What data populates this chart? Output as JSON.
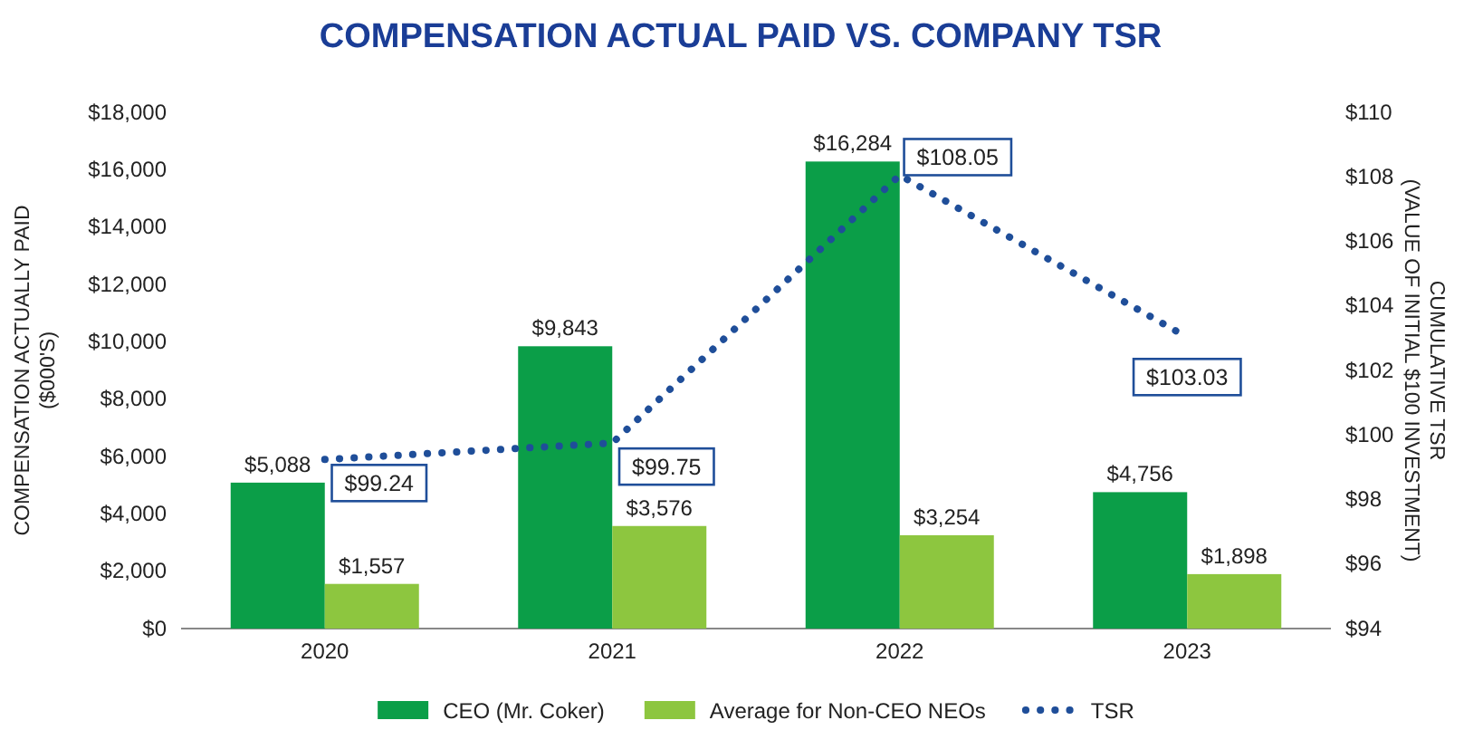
{
  "chart_data": {
    "type": "bar",
    "title": "COMPENSATION ACTUAL PAID VS. COMPANY TSR",
    "ylabel": "COMPENSATION ACTUALLY PAID\n($000'S)",
    "y2label": "CUMULATIVE TSR\n(VALUE OF INITIAL $100 INVESTMENT)",
    "categories": [
      "2020",
      "2021",
      "2022",
      "2023"
    ],
    "series": [
      {
        "name": "CEO (Mr. Coker)",
        "color": "#0b9e48",
        "values": [
          5088,
          9843,
          16284,
          4756
        ],
        "value_labels": [
          "$5,088",
          "$9,843",
          "$16,284",
          "$4,756"
        ]
      },
      {
        "name": "Average for Non-CEO NEOs",
        "color": "#8dc63f",
        "values": [
          1557,
          3576,
          3254,
          1898
        ],
        "value_labels": [
          "$1,557",
          "$3,576",
          "$3,254",
          "$1,898"
        ]
      },
      {
        "name": "TSR",
        "type": "line",
        "axis": "y2",
        "color": "#1f4e99",
        "line_style": "dotted",
        "marker": "none",
        "values": [
          99.24,
          99.75,
          108.05,
          103.03
        ],
        "value_labels": [
          "$99.24",
          "$99.75",
          "$108.05",
          "$103.03"
        ]
      }
    ],
    "ylim": [
      0,
      18000
    ],
    "yticks": [
      {
        "value": 0,
        "label": "$0"
      },
      {
        "value": 2000,
        "label": "$2,000"
      },
      {
        "value": 4000,
        "label": "$4,000"
      },
      {
        "value": 6000,
        "label": "$6,000"
      },
      {
        "value": 8000,
        "label": "$8,000"
      },
      {
        "value": 10000,
        "label": "$10,000"
      },
      {
        "value": 12000,
        "label": "$12,000"
      },
      {
        "value": 14000,
        "label": "$14,000"
      },
      {
        "value": 16000,
        "label": "$16,000"
      },
      {
        "value": 18000,
        "label": "$18,000"
      }
    ],
    "y2lim": [
      94,
      110
    ],
    "y2ticks": [
      {
        "value": 94,
        "label": "$94"
      },
      {
        "value": 96,
        "label": "$96"
      },
      {
        "value": 98,
        "label": "$98"
      },
      {
        "value": 100,
        "label": "$100"
      },
      {
        "value": 102,
        "label": "$102"
      },
      {
        "value": 104,
        "label": "$104"
      },
      {
        "value": 106,
        "label": "$106"
      },
      {
        "value": 108,
        "label": "$108"
      },
      {
        "value": 110,
        "label": "$110"
      }
    ],
    "grid": false,
    "legend": "bottom"
  }
}
